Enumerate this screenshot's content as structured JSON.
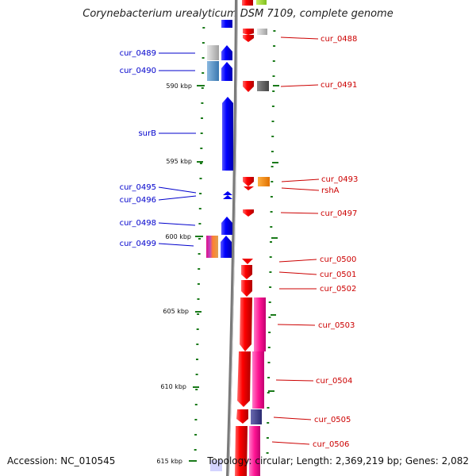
{
  "title": "Corynebacterium urealyticum DSM 7109, complete genome",
  "footer": {
    "accession": "Accession: NC_010545",
    "topology": "Topology: circular; Length: 2,369,219 bp; Genes: 2,082"
  },
  "colors": {
    "left_label": "#0000cc",
    "right_label": "#cc0000",
    "forward": "#0000ee",
    "reverse": "#ee0000",
    "tick": "#1a7a1a",
    "backbone": "#888888"
  },
  "ticks": [
    {
      "label": "590 kbp"
    },
    {
      "label": "595 kbp"
    },
    {
      "label": "600 kbp"
    },
    {
      "label": "605 kbp"
    },
    {
      "label": "610 kbp"
    },
    {
      "label": "615 kbp"
    }
  ],
  "left_genes": [
    {
      "label": "cur_0489"
    },
    {
      "label": "cur_0490"
    },
    {
      "label": "surB"
    },
    {
      "label": "cur_0495"
    },
    {
      "label": "cur_0496"
    },
    {
      "label": "cur_0498"
    },
    {
      "label": "cur_0499"
    }
  ],
  "right_genes": [
    {
      "label": "cur_0488"
    },
    {
      "label": "cur_0491"
    },
    {
      "label": "cur_0493"
    },
    {
      "label": "rshA"
    },
    {
      "label": "cur_0497"
    },
    {
      "label": "cur_0500"
    },
    {
      "label": "cur_0501"
    },
    {
      "label": "cur_0502"
    },
    {
      "label": "cur_0503"
    },
    {
      "label": "cur_0504"
    },
    {
      "label": "cur_0505"
    },
    {
      "label": "cur_0506"
    }
  ]
}
